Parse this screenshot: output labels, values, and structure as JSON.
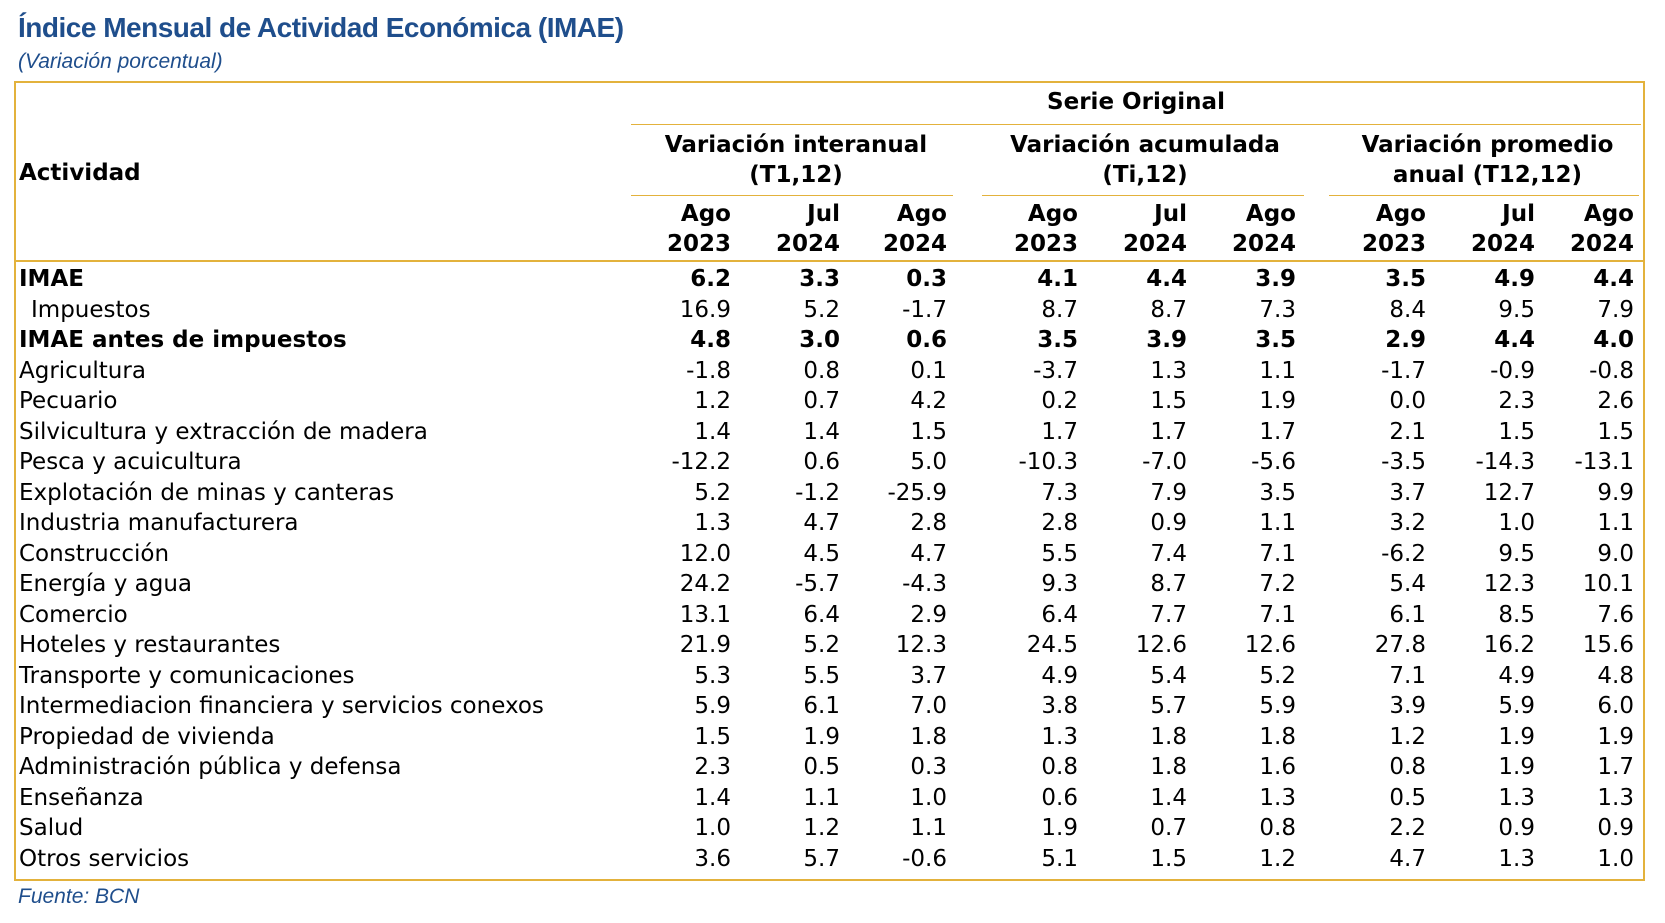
{
  "title": "Índice Mensual de Actividad Económica (IMAE)",
  "subtitle": "(Variación porcentual)",
  "source": "Fuente: BCN",
  "colors": {
    "title": "#1F4E8C",
    "border": "#E3B23C"
  },
  "header": {
    "activity": "Actividad",
    "serie": "Serie Original",
    "groups": [
      {
        "line1": "Variación interanual",
        "line2": "(T1,12)"
      },
      {
        "line1": "Variación acumulada",
        "line2": "(Ti,12)"
      },
      {
        "line1": "Variación promedio",
        "line2": "anual (T12,12)"
      }
    ],
    "periods": [
      {
        "month": "Ago",
        "year": "2023"
      },
      {
        "month": "Jul",
        "year": "2024"
      },
      {
        "month": "Ago",
        "year": "2024"
      }
    ]
  },
  "rows": [
    {
      "label": "IMAE",
      "bold": true,
      "values": [
        "6.2",
        "3.3",
        "0.3",
        "4.1",
        "4.4",
        "3.9",
        "3.5",
        "4.9",
        "4.4"
      ]
    },
    {
      "label": "Impuestos",
      "indent": true,
      "values": [
        "16.9",
        "5.2",
        "-1.7",
        "8.7",
        "8.7",
        "7.3",
        "8.4",
        "9.5",
        "7.9"
      ]
    },
    {
      "label": "IMAE antes de impuestos",
      "bold": true,
      "values": [
        "4.8",
        "3.0",
        "0.6",
        "3.5",
        "3.9",
        "3.5",
        "2.9",
        "4.4",
        "4.0"
      ]
    },
    {
      "label": "Agricultura",
      "values": [
        "-1.8",
        "0.8",
        "0.1",
        "-3.7",
        "1.3",
        "1.1",
        "-1.7",
        "-0.9",
        "-0.8"
      ]
    },
    {
      "label": "Pecuario",
      "values": [
        "1.2",
        "0.7",
        "4.2",
        "0.2",
        "1.5",
        "1.9",
        "0.0",
        "2.3",
        "2.6"
      ]
    },
    {
      "label": "Silvicultura y extracción de madera",
      "values": [
        "1.4",
        "1.4",
        "1.5",
        "1.7",
        "1.7",
        "1.7",
        "2.1",
        "1.5",
        "1.5"
      ]
    },
    {
      "label": "Pesca y acuicultura",
      "values": [
        "-12.2",
        "0.6",
        "5.0",
        "-10.3",
        "-7.0",
        "-5.6",
        "-3.5",
        "-14.3",
        "-13.1"
      ]
    },
    {
      "label": "Explotación de minas y canteras",
      "values": [
        "5.2",
        "-1.2",
        "-25.9",
        "7.3",
        "7.9",
        "3.5",
        "3.7",
        "12.7",
        "9.9"
      ]
    },
    {
      "label": "Industria manufacturera",
      "values": [
        "1.3",
        "4.7",
        "2.8",
        "2.8",
        "0.9",
        "1.1",
        "3.2",
        "1.0",
        "1.1"
      ]
    },
    {
      "label": "Construcción",
      "values": [
        "12.0",
        "4.5",
        "4.7",
        "5.5",
        "7.4",
        "7.1",
        "-6.2",
        "9.5",
        "9.0"
      ]
    },
    {
      "label": "Energía y agua",
      "values": [
        "24.2",
        "-5.7",
        "-4.3",
        "9.3",
        "8.7",
        "7.2",
        "5.4",
        "12.3",
        "10.1"
      ]
    },
    {
      "label": "Comercio",
      "values": [
        "13.1",
        "6.4",
        "2.9",
        "6.4",
        "7.7",
        "7.1",
        "6.1",
        "8.5",
        "7.6"
      ]
    },
    {
      "label": "Hoteles y restaurantes",
      "values": [
        "21.9",
        "5.2",
        "12.3",
        "24.5",
        "12.6",
        "12.6",
        "27.8",
        "16.2",
        "15.6"
      ]
    },
    {
      "label": "Transporte y comunicaciones",
      "values": [
        "5.3",
        "5.5",
        "3.7",
        "4.9",
        "5.4",
        "5.2",
        "7.1",
        "4.9",
        "4.8"
      ]
    },
    {
      "label": "Intermediacion financiera y servicios conexos",
      "values": [
        "5.9",
        "6.1",
        "7.0",
        "3.8",
        "5.7",
        "5.9",
        "3.9",
        "5.9",
        "6.0"
      ]
    },
    {
      "label": "Propiedad de vivienda",
      "values": [
        "1.5",
        "1.9",
        "1.8",
        "1.3",
        "1.8",
        "1.8",
        "1.2",
        "1.9",
        "1.9"
      ]
    },
    {
      "label": "Administración pública y defensa",
      "values": [
        "2.3",
        "0.5",
        "0.3",
        "0.8",
        "1.8",
        "1.6",
        "0.8",
        "1.9",
        "1.7"
      ]
    },
    {
      "label": "Enseñanza",
      "values": [
        "1.4",
        "1.1",
        "1.0",
        "0.6",
        "1.4",
        "1.3",
        "0.5",
        "1.3",
        "1.3"
      ]
    },
    {
      "label": "Salud",
      "values": [
        "1.0",
        "1.2",
        "1.1",
        "1.9",
        "0.7",
        "0.8",
        "2.2",
        "0.9",
        "0.9"
      ]
    },
    {
      "label": "Otros servicios",
      "values": [
        "3.6",
        "5.7",
        "-0.6",
        "5.1",
        "1.5",
        "1.2",
        "4.7",
        "1.3",
        "1.0"
      ]
    }
  ]
}
